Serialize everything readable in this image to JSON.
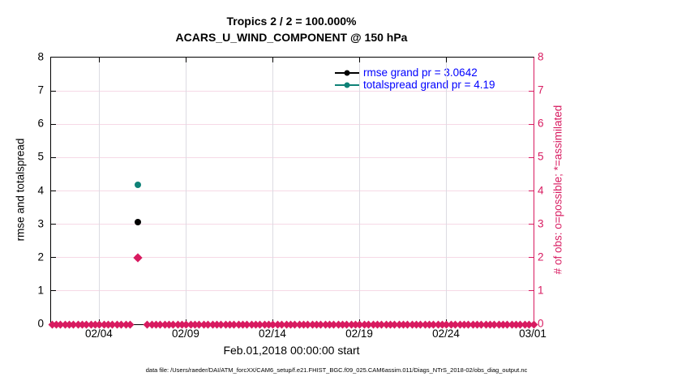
{
  "title": {
    "line1": "Tropics 2 / 2 = 100.000%",
    "line2": "ACARS_U_WIND_COMPONENT @ 150 hPa"
  },
  "legend": {
    "text_color": "#0000ff",
    "items": [
      {
        "label": "rmse grand pr = 3.0642",
        "color": "#000000"
      },
      {
        "label": "totalspread grand pr = 4.19",
        "color": "#0e8277"
      }
    ]
  },
  "footer": {
    "note": "data file: /Users/raeder/DAI/ATM_forcXX/CAM6_setup/f.e21.FHIST_BGC.f09_025.CAM6assim.011/Diags_NTrS_2018-02/obs_diag_output.nc"
  },
  "chart_data": {
    "type": "scatter",
    "title": "Tropics 2 / 2 = 100.000%",
    "subtitle": "ACARS_U_WIND_COMPONENT @ 150 hPa",
    "xlabel": "Feb.01,2018 00:00:00 start",
    "ylabel_left": "rmse and totalspread",
    "ylabel_right": "# of obs: o=possible; *=assimilated",
    "x_domain_days_from_feb01": [
      0.2,
      28
    ],
    "x_ticks": [
      {
        "day": 3,
        "label": "02/04"
      },
      {
        "day": 8,
        "label": "02/09"
      },
      {
        "day": 13,
        "label": "02/14"
      },
      {
        "day": 18,
        "label": "02/19"
      },
      {
        "day": 23,
        "label": "02/24"
      },
      {
        "day": 28,
        "label": "03/01"
      }
    ],
    "ylim": [
      0,
      8
    ],
    "y_ticks": [
      0,
      1,
      2,
      3,
      4,
      5,
      6,
      7,
      8
    ],
    "grid": true,
    "legend_position": "upper-right-inside",
    "series": [
      {
        "name": "rmse",
        "color": "#000000",
        "marker": "circle",
        "grand_pr": 3.0642,
        "points": [
          {
            "x_day": 5.2,
            "y": 3.0642
          }
        ]
      },
      {
        "name": "totalspread",
        "color": "#0e8277",
        "marker": "circle",
        "grand_pr": 4.19,
        "points": [
          {
            "x_day": 5.2,
            "y": 4.19
          }
        ]
      },
      {
        "name": "obs_count_possible_and_assimilated",
        "color": "#d81b60",
        "marker": "o-and-star",
        "points": [
          {
            "x_day": 5.2,
            "y": 2
          }
        ]
      },
      {
        "name": "obs_count_zero_band",
        "color": "#d81b60",
        "marker": "o-and-star",
        "zero_run": {
          "start_day": 0.25,
          "end_day": 28,
          "step_day": 0.25,
          "gap_days": [
            4.85,
            5.6
          ],
          "y": 0
        }
      }
    ],
    "colors": {
      "left_axis": "#000000",
      "right_axis": "#d81b60",
      "grid_horizontal": "#f6d9e6",
      "grid_vertical": "#dcdbe2",
      "legend_text": "#0000ff"
    }
  }
}
